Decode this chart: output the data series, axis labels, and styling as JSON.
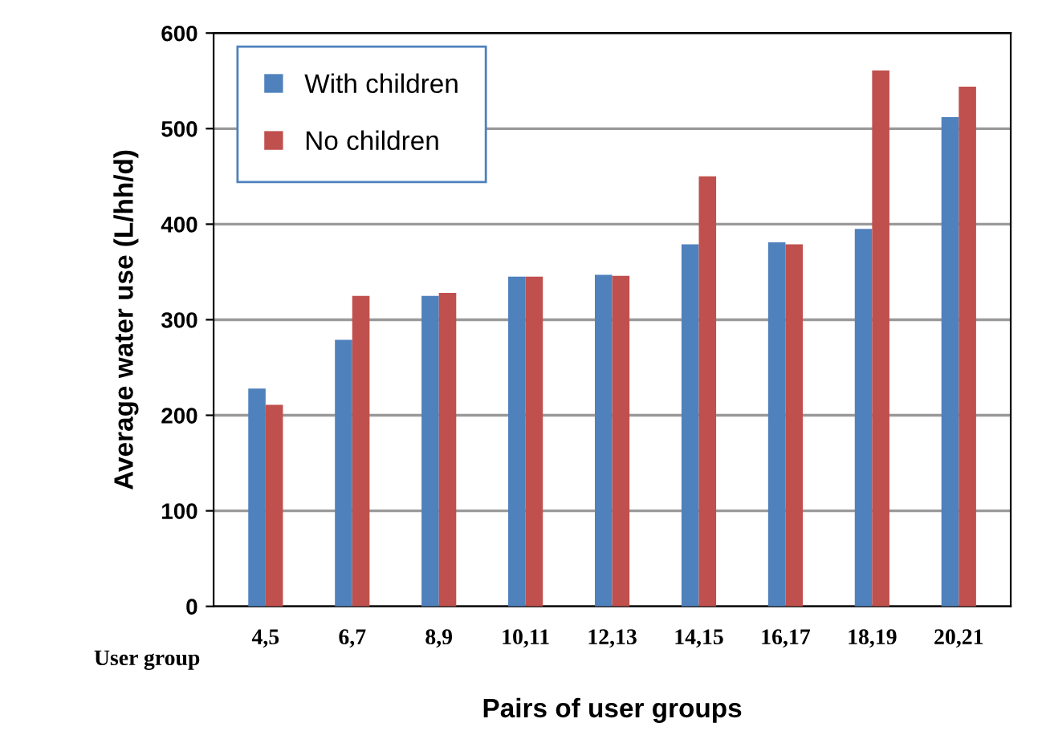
{
  "chart_data": {
    "type": "bar",
    "xlabel": "Pairs of user groups",
    "ylabel": "Average water use (L/hh/d)",
    "categories": [
      "4,5",
      "6,7",
      "8,9",
      "10,11",
      "12,13",
      "14,15",
      "16,17",
      "18,19",
      "20,21"
    ],
    "series": [
      {
        "name": "With children",
        "color": "#4f81bd",
        "values": [
          228,
          279,
          325,
          345,
          347,
          379,
          381,
          395,
          512
        ]
      },
      {
        "name": "No children",
        "color": "#c0504d",
        "values": [
          211,
          325,
          328,
          345,
          346,
          450,
          379,
          561,
          544
        ]
      }
    ],
    "annotations": [
      "User group"
    ],
    "ylim": [
      0,
      600
    ],
    "yticks": [
      0,
      100,
      200,
      300,
      400,
      500,
      600
    ],
    "grid": "y",
    "legend": "top left"
  }
}
